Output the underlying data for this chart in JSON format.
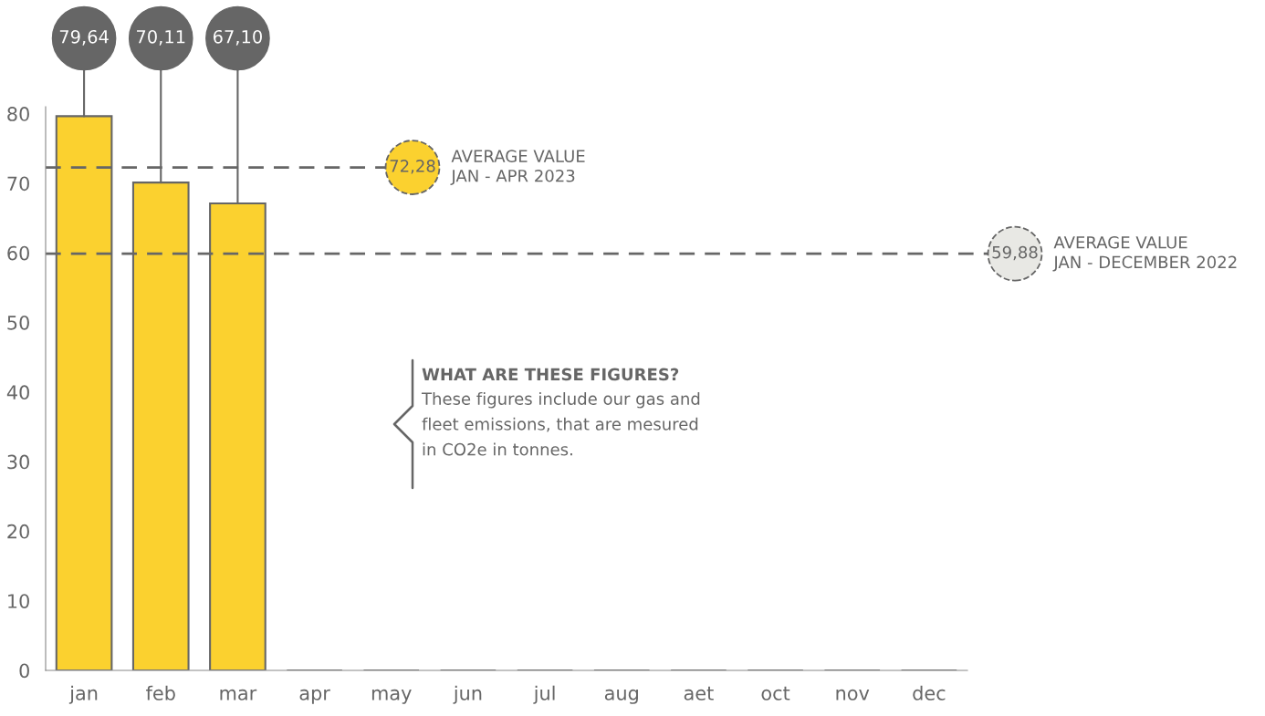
{
  "chart_data": {
    "type": "bar",
    "categories": [
      "jan",
      "feb",
      "mar",
      "apr",
      "may",
      "jun",
      "jul",
      "aug",
      "aet",
      "oct",
      "nov",
      "dec"
    ],
    "values": [
      79.64,
      70.11,
      67.1,
      0,
      0,
      0,
      0,
      0,
      0,
      0,
      0,
      0
    ],
    "color": "#fbd12f",
    "value_labels": [
      "79,64",
      "70,11",
      "67,10",
      null,
      null,
      null,
      null,
      null,
      null,
      null,
      null,
      null
    ],
    "ylim": [
      0,
      81
    ],
    "yticks": [
      0,
      10,
      20,
      30,
      40,
      50,
      60,
      70,
      80
    ],
    "grid": false,
    "ref_lines": [
      {
        "axis": "y",
        "value": 72.28,
        "label": "72,28",
        "color": "#666666",
        "line_style": "dashed"
      },
      {
        "axis": "y",
        "value": 59.88,
        "label": "59,88",
        "color": "#666666",
        "line_style": "dashed"
      }
    ],
    "annotations": [
      "AVERAGE VALUE\nJAN - APR 2023",
      "AVERAGE VALUE\nJAN - DECEMBER 2022",
      "WHAT ARE THESE FIGURES?",
      "These figures include our gas and\nfleet emissions, that are mesured\nin CO2e in tonnes."
    ]
  }
}
